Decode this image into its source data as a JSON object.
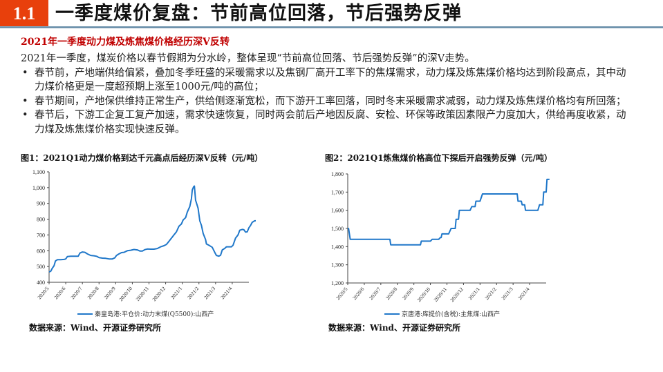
{
  "header": {
    "section_number": "1.1",
    "title": "一季度煤价复盘：节前高位回落，节后强势反弹",
    "accent_color": "#e8400c"
  },
  "subheading": "2021年一季度动力煤及炼焦煤价格经历深V反转",
  "body": {
    "intro": "2021年一季度，煤炭价格以春节假期为分水岭，整体呈现“节前高位回落、节后强势反弹”的深V走势。",
    "bullets": [
      "春节前，产地端供给偏紧，叠加冬季旺盛的采暖需求以及焦钢厂高开工率下的焦煤需求，动力煤及炼焦煤价格均达到阶段高点，其中动力煤价格更是一度超预期上涨至1000元/吨的高位；",
      "春节期间，产地保供维持正常生产，供给侧逐渐宽松，而下游开工率回落，同时冬末采暖需求减弱，动力煤及炼焦煤价格均有所回落；",
      "春节后，下游工企复工复产加速，需求快速恢复，同时两会前后产地因反腐、安检、环保等政策因素限产力度加大，供给再度收紧，动力煤及炼焦煤价格实现快速反弹。"
    ]
  },
  "figures": [
    {
      "title": "图1：2021Q1动力煤价格到达千元高点后经历深V反转（元/吨）",
      "legend": "秦皇岛港:平仓价:动力末煤(Q5500):山西产",
      "source": "数据来源：Wind、开源证券研究所"
    },
    {
      "title": "图2：2021Q1炼焦煤价格高位下探后开启强势反弹（元/吨）",
      "legend": "京唐港:库提价(含税):主焦煤:山西产",
      "source": "数据来源：Wind、开源证券研究所"
    }
  ],
  "chart_data": [
    {
      "type": "line",
      "title": "图1：2021Q1动力煤价格到达千元高点后经历深V反转（元/吨）",
      "xlabel": "",
      "ylabel": "元/吨",
      "ylim": [
        400,
        1100
      ],
      "yticks": [
        400,
        500,
        600,
        700,
        800,
        900,
        1000,
        1100
      ],
      "ytick_labels": [
        "400",
        "500",
        "600",
        "700",
        "800",
        "900",
        "1,000",
        "1,100"
      ],
      "categories": [
        "2020/5",
        "2020/6",
        "2020/7",
        "2020/8",
        "2020/9",
        "2020/10",
        "2020/11",
        "2020/12",
        "2021/1",
        "2021/2",
        "2021/3",
        "2021/4"
      ],
      "grid": false,
      "legend_position": "bottom",
      "color": "#1f77c9",
      "series": [
        {
          "name": "秦皇岛港:平仓价:动力末煤(Q5500):山西产",
          "points": [
            [
              0,
              465
            ],
            [
              0.1,
              470
            ],
            [
              0.2,
              490
            ],
            [
              0.3,
              505
            ],
            [
              0.38,
              535
            ],
            [
              0.5,
              543
            ],
            [
              0.7,
              543
            ],
            [
              0.9,
              545
            ],
            [
              1.0,
              548
            ],
            [
              1.1,
              563
            ],
            [
              1.3,
              565
            ],
            [
              1.5,
              565
            ],
            [
              1.75,
              565
            ],
            [
              1.85,
              585
            ],
            [
              2.0,
              592
            ],
            [
              2.15,
              590
            ],
            [
              2.3,
              580
            ],
            [
              2.5,
              570
            ],
            [
              2.7,
              568
            ],
            [
              2.85,
              565
            ],
            [
              3.0,
              556
            ],
            [
              3.2,
              553
            ],
            [
              3.4,
              552
            ],
            [
              3.6,
              548
            ],
            [
              3.8,
              548
            ],
            [
              3.95,
              555
            ],
            [
              4.05,
              570
            ],
            [
              4.2,
              580
            ],
            [
              4.35,
              588
            ],
            [
              4.5,
              590
            ],
            [
              4.7,
              600
            ],
            [
              4.9,
              603
            ],
            [
              5.1,
              608
            ],
            [
              5.3,
              605
            ],
            [
              5.45,
              598
            ],
            [
              5.6,
              598
            ],
            [
              5.75,
              607
            ],
            [
              5.9,
              611
            ],
            [
              6.1,
              610
            ],
            [
              6.3,
              610
            ],
            [
              6.5,
              614
            ],
            [
              6.7,
              625
            ],
            [
              6.9,
              632
            ],
            [
              7.05,
              640
            ],
            [
              7.2,
              660
            ],
            [
              7.35,
              680
            ],
            [
              7.5,
              700
            ],
            [
              7.65,
              720
            ],
            [
              7.8,
              755
            ],
            [
              7.95,
              770
            ],
            [
              8.05,
              795
            ],
            [
              8.2,
              810
            ],
            [
              8.3,
              845
            ],
            [
              8.45,
              880
            ],
            [
              8.55,
              930
            ],
            [
              8.6,
              985
            ],
            [
              8.68,
              1005
            ],
            [
              8.73,
              1010
            ],
            [
              8.8,
              920
            ],
            [
              8.95,
              870
            ],
            [
              9.05,
              790
            ],
            [
              9.15,
              760
            ],
            [
              9.25,
              710
            ],
            [
              9.4,
              670
            ],
            [
              9.45,
              643
            ],
            [
              9.6,
              635
            ],
            [
              9.8,
              622
            ],
            [
              9.95,
              590
            ],
            [
              10.05,
              570
            ],
            [
              10.2,
              566
            ],
            [
              10.3,
              572
            ],
            [
              10.4,
              605
            ],
            [
              10.55,
              615
            ],
            [
              10.65,
              625
            ],
            [
              10.8,
              625
            ],
            [
              10.95,
              625
            ],
            [
              11.05,
              635
            ],
            [
              11.2,
              680
            ],
            [
              11.35,
              700
            ],
            [
              11.45,
              730
            ],
            [
              11.6,
              735
            ],
            [
              11.7,
              733
            ],
            [
              11.8,
              718
            ],
            [
              11.9,
              720
            ],
            [
              12.0,
              745
            ],
            [
              12.1,
              760
            ],
            [
              12.2,
              780
            ],
            [
              12.35,
              790
            ],
            [
              12.5,
              790
            ],
            [
              12.55,
              800
            ]
          ]
        }
      ]
    },
    {
      "type": "line",
      "title": "图2：2021Q1炼焦煤价格高位下探后开启强势反弹（元/吨）",
      "xlabel": "",
      "ylabel": "元/吨",
      "ylim": [
        1200,
        1800
      ],
      "yticks": [
        1200,
        1300,
        1400,
        1500,
        1600,
        1700,
        1800
      ],
      "ytick_labels": [
        "1,200",
        "1,300",
        "1,400",
        "1,500",
        "1,600",
        "1,700",
        "1,800"
      ],
      "categories": [
        "2020/5",
        "2020/6",
        "2020/7",
        "2020/8",
        "2020/9",
        "2020/10",
        "2020/11",
        "2020/12",
        "2021/1",
        "2021/2",
        "2021/3",
        "2021/4"
      ],
      "grid": false,
      "legend_position": "bottom",
      "color": "#1f77c9",
      "series": [
        {
          "name": "京唐港:库提价(含税):主焦煤:山西产",
          "points": [
            [
              0,
              1500
            ],
            [
              0.05,
              1500
            ],
            [
              0.15,
              1440
            ],
            [
              1.0,
              1440
            ],
            [
              2.0,
              1440
            ],
            [
              2.55,
              1440
            ],
            [
              2.6,
              1410
            ],
            [
              3.0,
              1410
            ],
            [
              4.0,
              1410
            ],
            [
              4.4,
              1410
            ],
            [
              4.45,
              1430
            ],
            [
              5.0,
              1430
            ],
            [
              5.1,
              1440
            ],
            [
              5.5,
              1440
            ],
            [
              5.6,
              1450
            ],
            [
              5.65,
              1450
            ],
            [
              5.7,
              1470
            ],
            [
              6.0,
              1470
            ],
            [
              6.1,
              1470
            ],
            [
              6.25,
              1500
            ],
            [
              6.5,
              1500
            ],
            [
              6.55,
              1550
            ],
            [
              6.7,
              1550
            ],
            [
              6.75,
              1600
            ],
            [
              7.0,
              1600
            ],
            [
              7.4,
              1600
            ],
            [
              7.5,
              1620
            ],
            [
              7.7,
              1620
            ],
            [
              7.75,
              1650
            ],
            [
              8.0,
              1650
            ],
            [
              8.15,
              1690
            ],
            [
              9.0,
              1690
            ],
            [
              10.0,
              1690
            ],
            [
              10.25,
              1690
            ],
            [
              10.3,
              1650
            ],
            [
              10.5,
              1650
            ],
            [
              10.55,
              1630
            ],
            [
              10.7,
              1630
            ],
            [
              10.75,
              1600
            ],
            [
              11.0,
              1600
            ],
            [
              11.5,
              1600
            ],
            [
              11.6,
              1630
            ],
            [
              11.8,
              1630
            ],
            [
              11.85,
              1700
            ],
            [
              12.0,
              1700
            ],
            [
              12.05,
              1770
            ],
            [
              12.2,
              1770
            ]
          ]
        }
      ]
    }
  ]
}
